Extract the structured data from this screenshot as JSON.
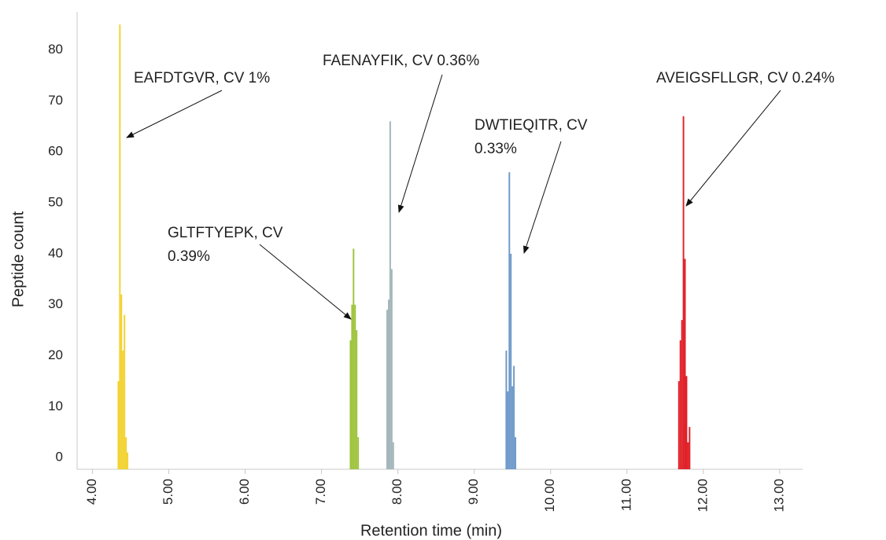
{
  "chart_data": {
    "type": "bar",
    "x_label": "Retention time (min)",
    "y_label": "Peptide count",
    "xlim": [
      3.8,
      13.3
    ],
    "ylim": [
      -2.3,
      87.5
    ],
    "xticks": [
      {
        "value": 4,
        "label": "4.00"
      },
      {
        "value": 5,
        "label": "5.00"
      },
      {
        "value": 6,
        "label": "6.00"
      },
      {
        "value": 7,
        "label": "7.00"
      },
      {
        "value": 8,
        "label": "8.00"
      },
      {
        "value": 9,
        "label": "9.00"
      },
      {
        "value": 10,
        "label": "10.00"
      },
      {
        "value": 11,
        "label": "11.00"
      },
      {
        "value": 12,
        "label": "12.00"
      },
      {
        "value": 13,
        "label": "13.00"
      }
    ],
    "yticks": [
      0,
      10,
      20,
      30,
      40,
      50,
      60,
      70,
      80
    ],
    "bar_width": 0.02,
    "series": [
      {
        "color": "#f2d22e",
        "x": [
          4.34,
          4.36,
          4.38,
          4.4,
          4.42,
          4.44,
          4.46
        ],
        "values": [
          15,
          85,
          32,
          21,
          28,
          4,
          1
        ]
      },
      {
        "color": "#9dc33b",
        "x": [
          7.38,
          7.4,
          7.42,
          7.44,
          7.46,
          7.48
        ],
        "values": [
          23,
          30,
          41,
          30,
          25,
          4
        ]
      },
      {
        "color": "#a3b6ba",
        "x": [
          7.86,
          7.88,
          7.9,
          7.92,
          7.94
        ],
        "values": [
          29,
          31,
          66,
          37,
          3
        ]
      },
      {
        "color": "#6c98c8",
        "x": [
          9.42,
          9.44,
          9.46,
          9.48,
          9.5,
          9.52,
          9.54
        ],
        "values": [
          21,
          13,
          56,
          40,
          14,
          18,
          4
        ]
      },
      {
        "color": "#e02027",
        "x": [
          11.68,
          11.7,
          11.72,
          11.74,
          11.76,
          11.78,
          11.8,
          11.82
        ],
        "values": [
          15,
          23,
          27,
          67,
          39,
          16,
          3,
          6
        ]
      }
    ],
    "annotations": [
      {
        "lines": [
          "EAFDTGVR, CV 1%"
        ]
      },
      {
        "lines": [
          "GLTFTYEPK, CV",
          "0.39%"
        ]
      },
      {
        "lines": [
          "FAENAYFIK, CV 0.36%"
        ]
      },
      {
        "lines": [
          "DWTIEQITR, CV",
          "0.33%"
        ]
      },
      {
        "lines": [
          "AVEIGSFLLGR, CV 0.24%"
        ]
      }
    ]
  }
}
